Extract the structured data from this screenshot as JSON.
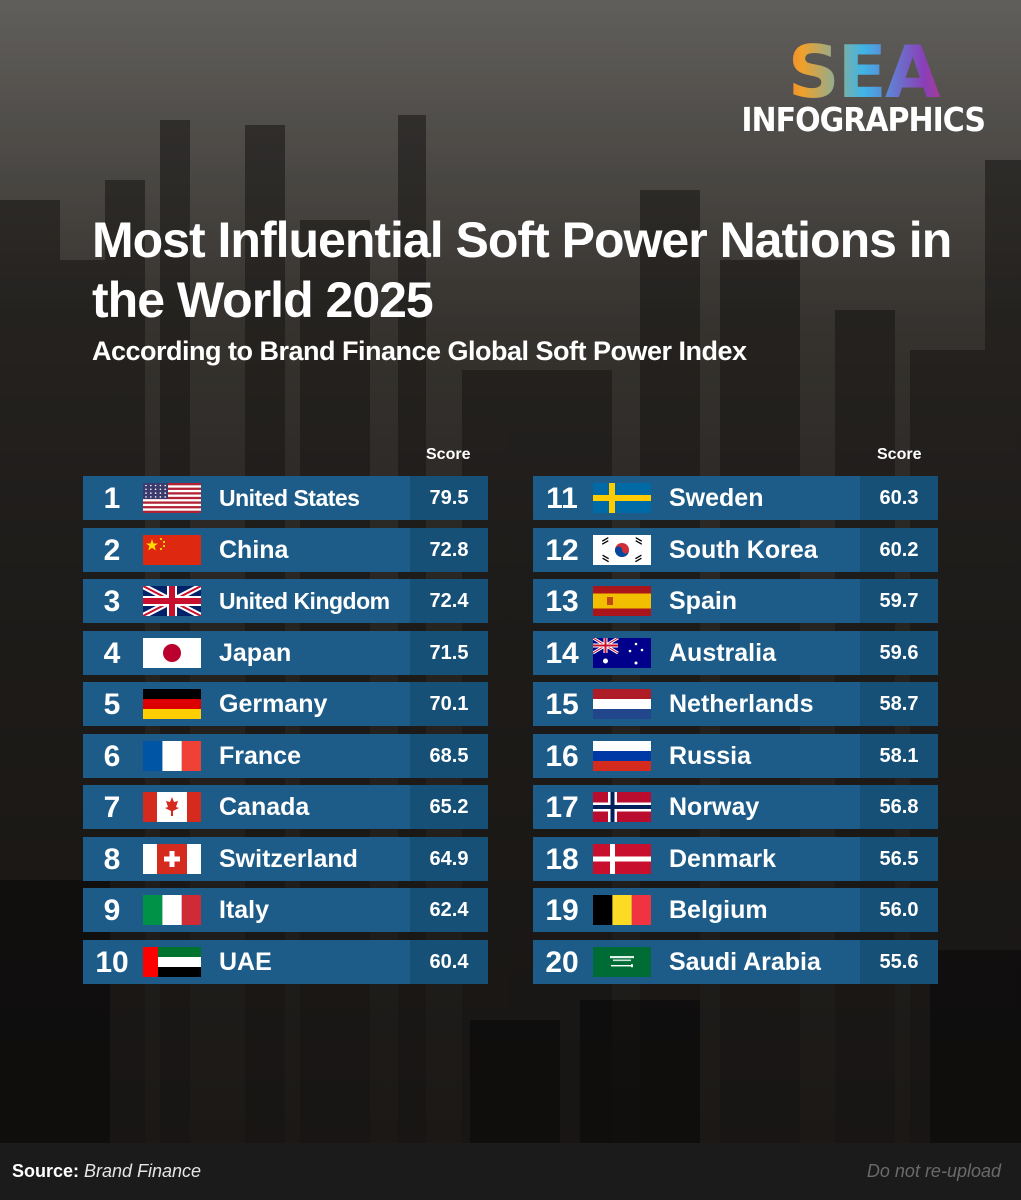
{
  "logo": {
    "main": "SEA",
    "sub": "INFOGRAPHICS"
  },
  "header": {
    "title": "Most Influential Soft Power Nations in the World  2025",
    "subtitle": "According to Brand Finance Global Soft Power Index"
  },
  "chart_data": {
    "type": "table",
    "title": "Most Influential Soft Power Nations in the World  2025",
    "subtitle": "According to Brand Finance Global Soft Power Index",
    "column_header": "Score",
    "rows": [
      {
        "rank": 1,
        "country": "United States",
        "score": 79.5,
        "flag": "flag-us"
      },
      {
        "rank": 2,
        "country": "China",
        "score": 72.8,
        "flag": "flag-cn"
      },
      {
        "rank": 3,
        "country": "United Kingdom",
        "score": 72.4,
        "flag": "flag-gb"
      },
      {
        "rank": 4,
        "country": "Japan",
        "score": 71.5,
        "flag": "flag-jp"
      },
      {
        "rank": 5,
        "country": "Germany",
        "score": 70.1,
        "flag": "flag-de"
      },
      {
        "rank": 6,
        "country": "France",
        "score": 68.5,
        "flag": "flag-fr"
      },
      {
        "rank": 7,
        "country": "Canada",
        "score": 65.2,
        "flag": "flag-ca"
      },
      {
        "rank": 8,
        "country": "Switzerland",
        "score": 64.9,
        "flag": "flag-ch"
      },
      {
        "rank": 9,
        "country": "Italy",
        "score": 62.4,
        "flag": "flag-it"
      },
      {
        "rank": 10,
        "country": "UAE",
        "score": 60.4,
        "flag": "flag-ae"
      },
      {
        "rank": 11,
        "country": "Sweden",
        "score": 60.3,
        "flag": "flag-se"
      },
      {
        "rank": 12,
        "country": "South Korea",
        "score": 60.2,
        "flag": "flag-kr"
      },
      {
        "rank": 13,
        "country": "Spain",
        "score": 59.7,
        "flag": "flag-es"
      },
      {
        "rank": 14,
        "country": "Australia",
        "score": 59.6,
        "flag": "flag-au"
      },
      {
        "rank": 15,
        "country": "Netherlands",
        "score": 58.7,
        "flag": "flag-nl"
      },
      {
        "rank": 16,
        "country": "Russia",
        "score": 58.1,
        "flag": "flag-ru"
      },
      {
        "rank": 17,
        "country": "Norway",
        "score": 56.8,
        "flag": "flag-no"
      },
      {
        "rank": 18,
        "country": "Denmark",
        "score": 56.5,
        "flag": "flag-dk"
      },
      {
        "rank": 19,
        "country": "Belgium",
        "score": 56.0,
        "flag": "flag-be"
      },
      {
        "rank": 20,
        "country": "Saudi Arabia",
        "score": 55.6,
        "flag": "flag-sa"
      }
    ]
  },
  "footer": {
    "source_label": "Source:",
    "source_value": "Brand Finance",
    "note": "Do not re-upload"
  },
  "colors": {
    "row_bg": "#1d5c88",
    "score_bg": "#175077",
    "text": "#ffffff",
    "footer_bg": "#1b1b1b"
  }
}
